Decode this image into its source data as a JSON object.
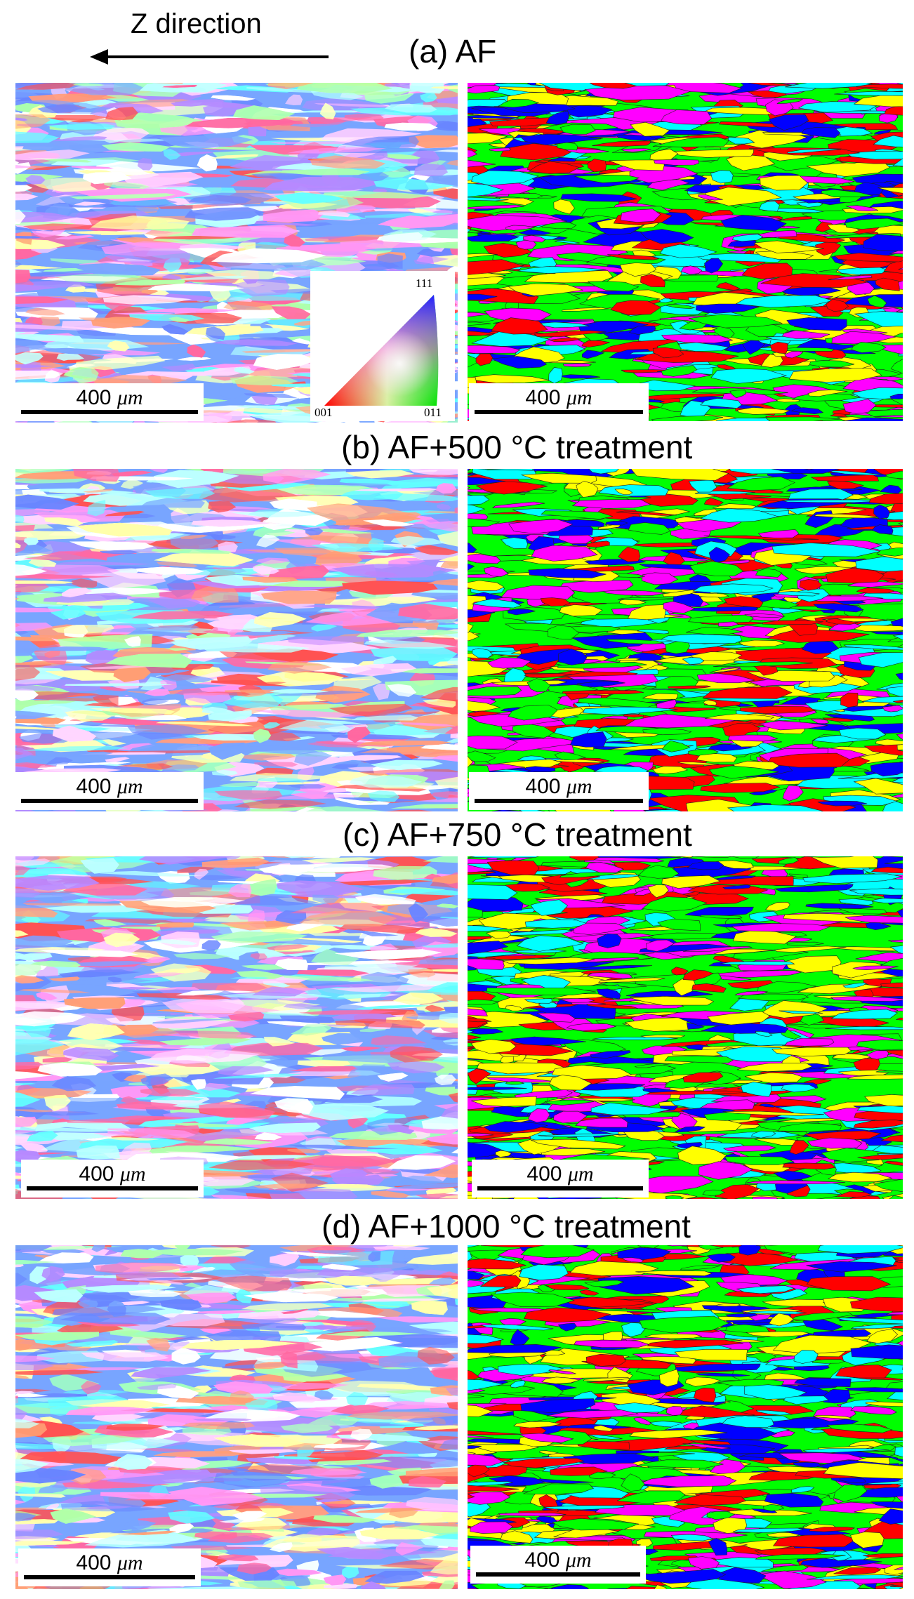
{
  "direction_label": "Z direction",
  "legend": {
    "apex_111": "111",
    "corner_001": "001",
    "corner_011": "011"
  },
  "scale_bar": {
    "value": "400",
    "unit": "μm"
  },
  "rows": [
    {
      "caption": "(a) AF"
    },
    {
      "caption": "(b) AF+500 °C treatment"
    },
    {
      "caption": "(c) AF+750 °C treatment"
    },
    {
      "caption": "(d) AF+1000 °C treatment"
    }
  ],
  "colors": {
    "ipf": [
      "#ff4d8d",
      "#ff3b3b",
      "#ff77e0",
      "#5a8cff",
      "#2ee6f0",
      "#7dfa7a",
      "#ffb0f0",
      "#a070ff",
      "#f0ff70",
      "#ff8050",
      "#8df0e8",
      "#ffffff",
      "#5070ff"
    ],
    "grain": [
      "#ff0000",
      "#00ff00",
      "#0000ff",
      "#00ffff",
      "#ff00ff",
      "#ffff00"
    ]
  }
}
